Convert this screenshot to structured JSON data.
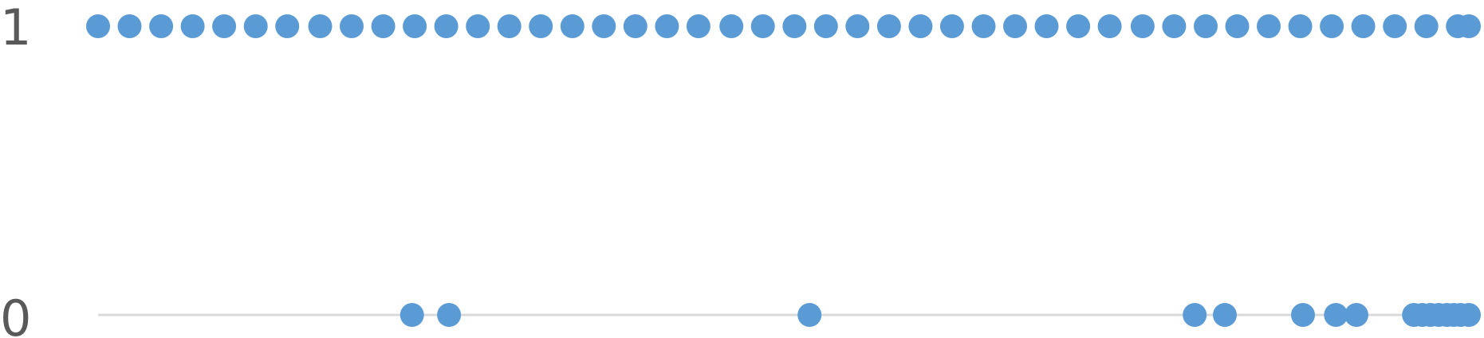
{
  "chart_data": {
    "type": "scatter",
    "y_ticks": [
      "1",
      "0"
    ],
    "ylim": [
      0,
      1
    ],
    "color": "#5b9bd5",
    "baseline_color": "#d9d9d9",
    "series": [
      {
        "y": 1,
        "x": [
          0.0,
          0.023,
          0.046,
          0.069,
          0.092,
          0.115,
          0.138,
          0.162,
          0.185,
          0.208,
          0.231,
          0.254,
          0.277,
          0.3,
          0.323,
          0.346,
          0.369,
          0.392,
          0.415,
          0.438,
          0.462,
          0.485,
          0.508,
          0.531,
          0.554,
          0.577,
          0.6,
          0.623,
          0.646,
          0.669,
          0.692,
          0.715,
          0.738,
          0.762,
          0.785,
          0.808,
          0.831,
          0.854,
          0.877,
          0.9,
          0.923,
          0.946,
          0.969,
          0.992,
          1.0
        ]
      },
      {
        "y": 0,
        "x": [
          0.229,
          0.256,
          0.519,
          0.8,
          0.822,
          0.879,
          0.903,
          0.918,
          0.96,
          0.966,
          0.972,
          0.978,
          0.984,
          0.989,
          0.994,
          1.0
        ]
      }
    ]
  }
}
